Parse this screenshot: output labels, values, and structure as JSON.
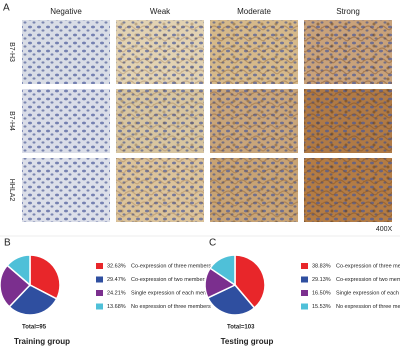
{
  "panel_a": {
    "label": "A",
    "columns": [
      "Negative",
      "Weak",
      "Moderate",
      "Strong"
    ],
    "rows": [
      "B7-H3",
      "B7-H4",
      "HHLA2"
    ],
    "magnification": "400X"
  },
  "chart_data": [
    {
      "type": "pie",
      "panel": "B",
      "categories": [
        "Co-expression of three members",
        "Co-expression of two members",
        "Single expression of each member",
        "No expression of three members"
      ],
      "values": [
        32.63,
        29.47,
        24.21,
        13.68
      ],
      "value_labels": [
        "32.63%",
        "29.47%",
        "24.21%",
        "13.68%"
      ],
      "colors": [
        "#e8262a",
        "#2f4fa0",
        "#7b2f8e",
        "#4fc0d8"
      ],
      "total": "Total=95",
      "title": "Training group"
    },
    {
      "type": "pie",
      "panel": "C",
      "categories": [
        "Co-expression of three members",
        "Co-expression of two members",
        "Single expression of each member",
        "No expression of three members"
      ],
      "values": [
        38.83,
        29.13,
        16.5,
        15.53
      ],
      "value_labels": [
        "38.83%",
        "29.13%",
        "16.50%",
        "15.53%"
      ],
      "colors": [
        "#e8262a",
        "#2f4fa0",
        "#7b2f8e",
        "#4fc0d8"
      ],
      "total": "Total=103",
      "title": "Testing group"
    }
  ]
}
